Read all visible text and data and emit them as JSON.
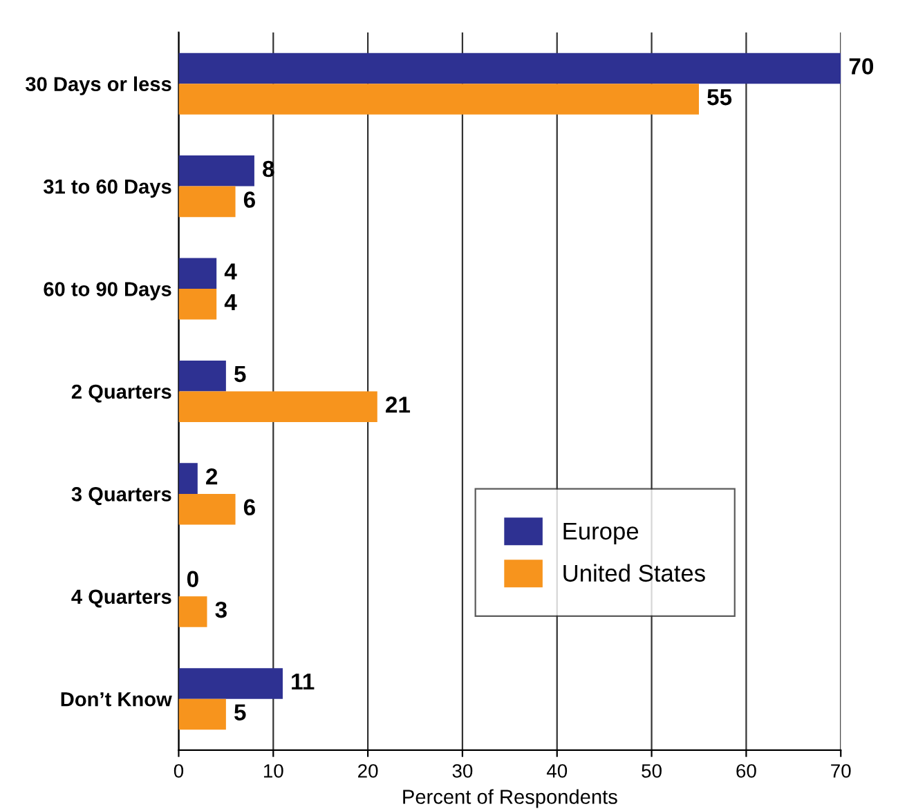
{
  "chart_data": {
    "type": "bar",
    "orientation": "horizontal",
    "xlabel": "Percent of Respondents",
    "categories": [
      "30 Days or less",
      "31 to 60 Days",
      "60 to 90 Days",
      "2 Quarters",
      "3 Quarters",
      "4 Quarters",
      "Don’t Know"
    ],
    "series": [
      {
        "name": "Europe",
        "color": "#2e3192",
        "values": [
          70,
          8,
          4,
          5,
          2,
          0,
          11
        ]
      },
      {
        "name": "United States",
        "color": "#f7941d",
        "values": [
          55,
          6,
          4,
          21,
          6,
          3,
          5
        ]
      }
    ],
    "xlim": [
      0,
      70
    ],
    "xticks": [
      0,
      10,
      20,
      30,
      40,
      50,
      60,
      70
    ],
    "grid": "x",
    "legend": "bottom right",
    "data_labels": true
  }
}
